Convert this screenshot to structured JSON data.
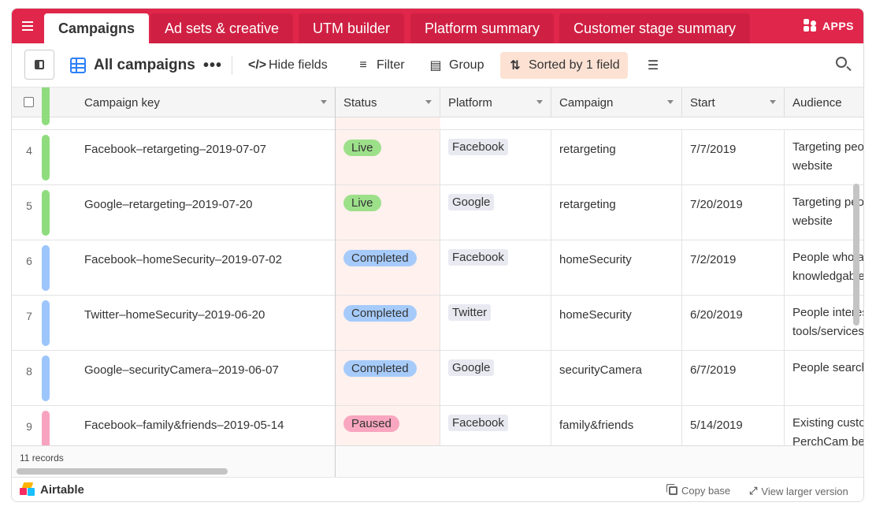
{
  "tabs": [
    {
      "label": "Campaigns",
      "active": true
    },
    {
      "label": "Ad sets & creative",
      "active": false
    },
    {
      "label": "UTM builder",
      "active": false
    },
    {
      "label": "Platform summary",
      "active": false
    },
    {
      "label": "Customer stage summary",
      "active": false
    }
  ],
  "apps_label": "APPS",
  "toolbar": {
    "view_name": "All campaigns",
    "more": "•••",
    "hide_fields": "Hide fields",
    "filter": "Filter",
    "group": "Group",
    "sorted": "Sorted by 1 field"
  },
  "columns": [
    "Campaign key",
    "Status",
    "Platform",
    "Campaign",
    "Start",
    "Audience"
  ],
  "colors": {
    "brand_red": "#e0264a",
    "live": "#9de08a",
    "completed": "#a6cbfa",
    "paused": "#f9a6c0",
    "row_green": "#8fdc7e",
    "row_blue": "#9cc5fb",
    "row_pink": "#f7a3bf"
  },
  "rows": [
    {
      "num": "4",
      "key": "Facebook–retargeting–2019-07-07",
      "status": "Live",
      "status_color": "#9de08a",
      "row_color": "#8fdc7e",
      "platform": "Facebook",
      "campaign": "retargeting",
      "start": "7/7/2019",
      "audience": "Targeting people on our website"
    },
    {
      "num": "5",
      "key": "Google–retargeting–2019-07-20",
      "status": "Live",
      "status_color": "#9de08a",
      "row_color": "#8fdc7e",
      "platform": "Google",
      "campaign": "retargeting",
      "start": "7/20/2019",
      "audience": "Targeting people on our website"
    },
    {
      "num": "6",
      "key": "Facebook–homeSecurity–2019-07-02",
      "status": "Completed",
      "status_color": "#a6cbfa",
      "row_color": "#9cc5fb",
      "platform": "Facebook",
      "campaign": "homeSecurity",
      "start": "7/2/2019",
      "audience": "People who are knowledgable"
    },
    {
      "num": "7",
      "key": "Twitter–homeSecurity–2019-06-20",
      "status": "Completed",
      "status_color": "#a6cbfa",
      "row_color": "#9cc5fb",
      "platform": "Twitter",
      "campaign": "homeSecurity",
      "start": "6/20/2019",
      "audience": "People interested in tools/services"
    },
    {
      "num": "8",
      "key": "Google–securityCamera–2019-06-07",
      "status": "Completed",
      "status_color": "#a6cbfa",
      "row_color": "#9cc5fb",
      "platform": "Google",
      "campaign": "securityCamera",
      "start": "6/7/2019",
      "audience": "People searching ..."
    },
    {
      "num": "9",
      "key": "Facebook–family&friends–2019-05-14",
      "status": "Paused",
      "status_color": "#f9a6c0",
      "row_color": "#f7a3bf",
      "platform": "Facebook",
      "campaign": "family&friends",
      "start": "5/14/2019",
      "audience": "Existing customers PerchCam be"
    }
  ],
  "record_count": "11 records",
  "brand": "Airtable",
  "copy_base": "Copy base",
  "view_larger": "View larger version"
}
